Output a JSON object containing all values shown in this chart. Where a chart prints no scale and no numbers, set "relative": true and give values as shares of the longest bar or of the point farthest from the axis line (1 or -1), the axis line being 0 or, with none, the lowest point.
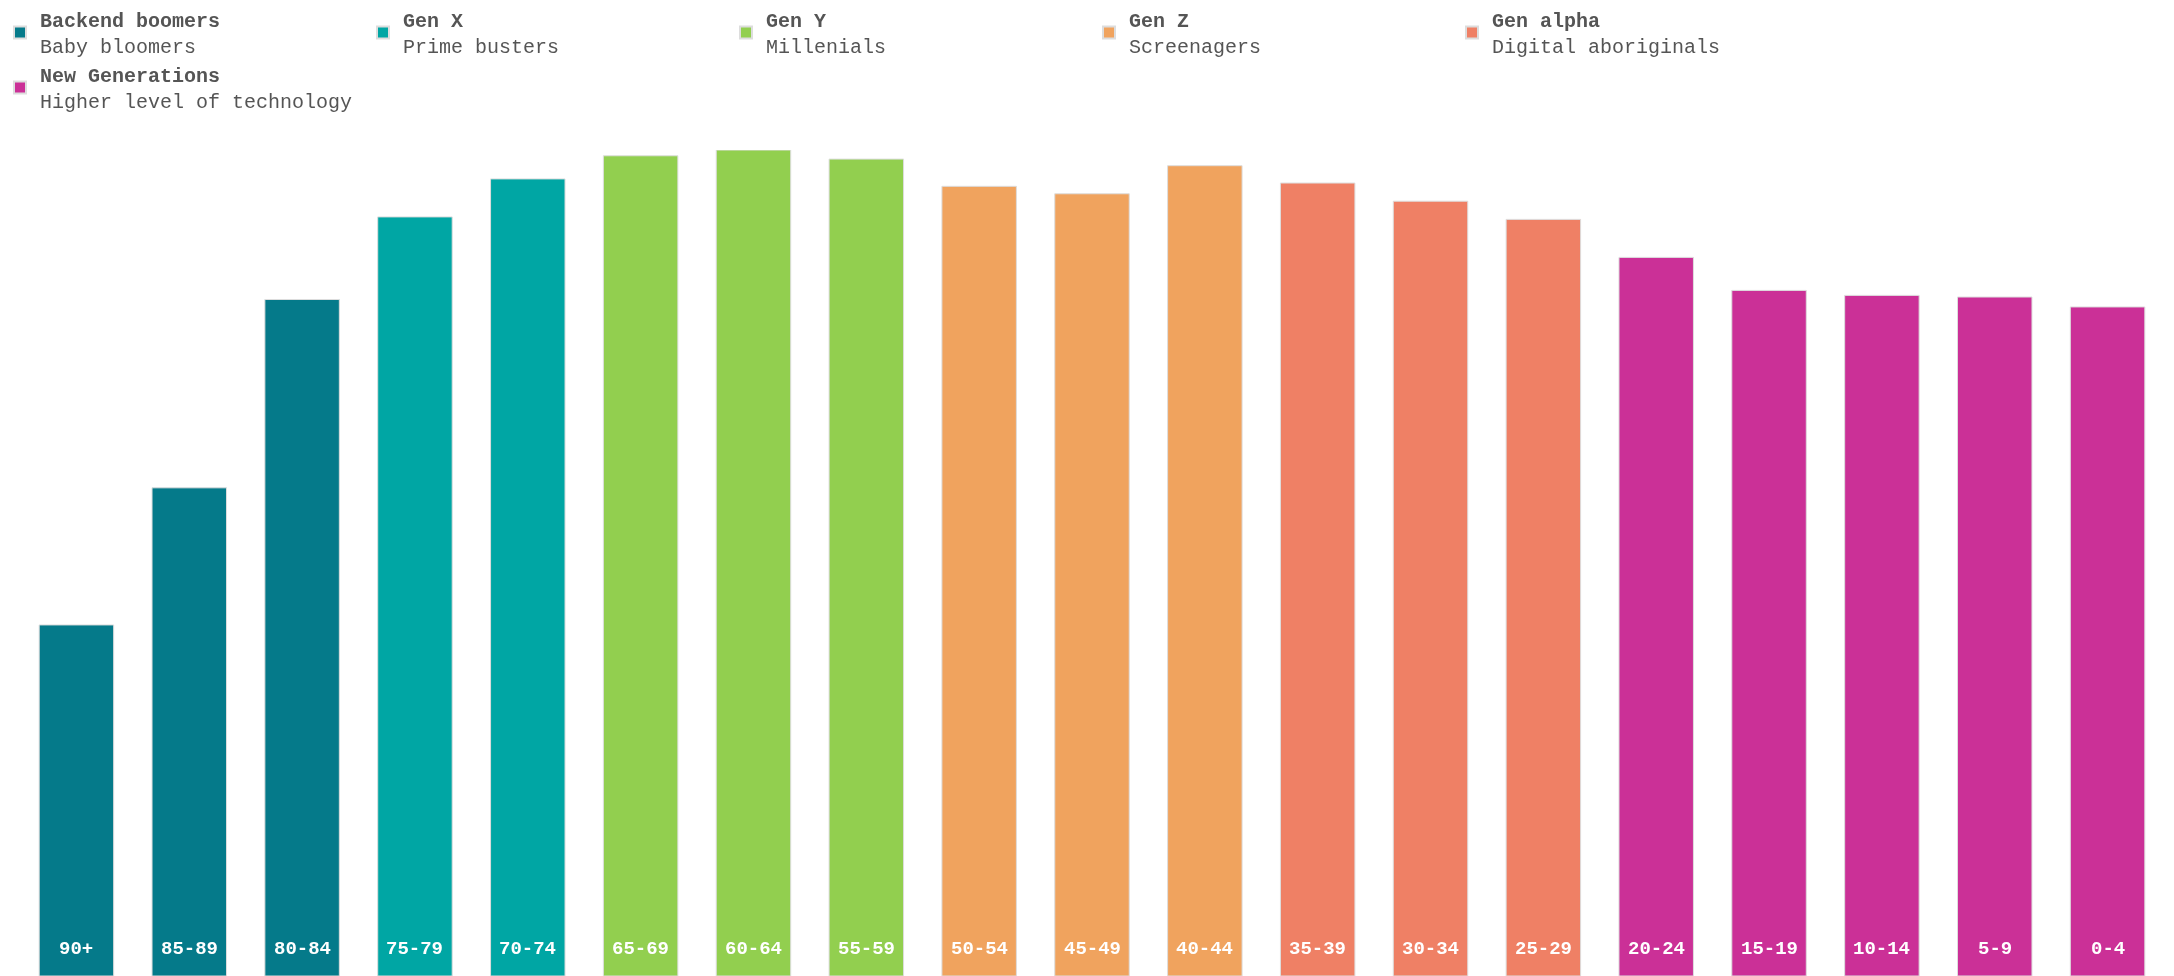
{
  "chart_data": {
    "type": "bar",
    "relative": true,
    "categories": [
      "90+",
      "85-89",
      "80-84",
      "75-79",
      "70-74",
      "65-69",
      "60-64",
      "55-59",
      "50-54",
      "45-49",
      "40-44",
      "35-39",
      "30-34",
      "25-29",
      "20-24",
      "15-19",
      "10-14",
      "5-9",
      "0-4"
    ],
    "series": [
      {
        "name": "Backend boomers\nBaby bloomers",
        "color": "#057a8a",
        "values": [
          0.425,
          0.591,
          0.819,
          null,
          null,
          null,
          null,
          null,
          null,
          null,
          null,
          null,
          null,
          null,
          null,
          null,
          null,
          null,
          null
        ]
      },
      {
        "name": "Gen X\nPrime busters",
        "color": "#00a6a4",
        "values": [
          null,
          null,
          null,
          0.919,
          0.965,
          null,
          null,
          null,
          null,
          null,
          null,
          null,
          null,
          null,
          null,
          null,
          null,
          null,
          null
        ]
      },
      {
        "name": "Gen Y\nMillenials",
        "color": "#92cf4f",
        "values": [
          null,
          null,
          null,
          null,
          null,
          0.993,
          1,
          0.989,
          null,
          null,
          null,
          null,
          null,
          null,
          null,
          null,
          null,
          null,
          null
        ]
      },
      {
        "name": "Gen Z\nScreenagers",
        "color": "#f0a35e",
        "values": [
          null,
          null,
          null,
          null,
          null,
          null,
          null,
          null,
          0.956,
          0.947,
          0.981,
          null,
          null,
          null,
          null,
          null,
          null,
          null,
          null
        ]
      },
      {
        "name": "Gen alpha\nDigital aboriginals",
        "color": "#ef8065",
        "values": [
          null,
          null,
          null,
          null,
          null,
          null,
          null,
          null,
          null,
          null,
          null,
          0.96,
          0.938,
          0.916,
          null,
          null,
          null,
          null,
          null
        ]
      },
      {
        "name": "New Generations\nHigher level of technology",
        "color": "#cb3097",
        "values": [
          null,
          null,
          null,
          null,
          null,
          null,
          null,
          null,
          null,
          null,
          null,
          null,
          null,
          null,
          0.87,
          0.83,
          0.824,
          0.822,
          0.81
        ]
      }
    ],
    "legend": "top"
  }
}
